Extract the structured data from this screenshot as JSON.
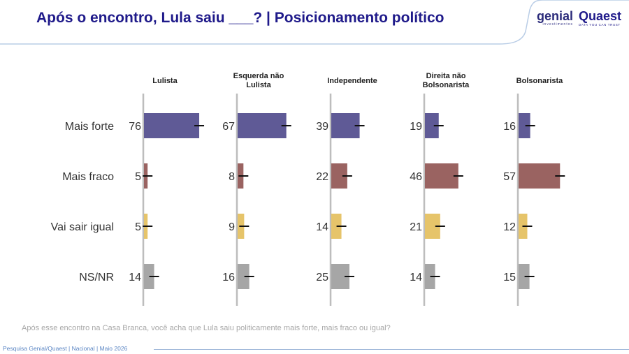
{
  "header": {
    "title": "Após o encontro, Lula saiu ___? | Posicionamento político",
    "logo_genial": "genial",
    "logo_genial_sub": "investimentos",
    "logo_quaest": "Quaest",
    "logo_quaest_sub": "DATA YOU CAN TRUST"
  },
  "chart_data": {
    "type": "bar",
    "orientation": "horizontal",
    "groups": [
      "Lulista",
      "Esquerda não Lulista",
      "Independente",
      "Direita não Bolsonarista",
      "Bolsonarista"
    ],
    "categories": [
      "Mais forte",
      "Mais fraco",
      "Vai sair igual",
      "NS/NR"
    ],
    "values": [
      [
        76,
        5,
        5,
        14
      ],
      [
        67,
        8,
        9,
        16
      ],
      [
        39,
        22,
        14,
        25
      ],
      [
        19,
        46,
        21,
        14
      ],
      [
        16,
        57,
        12,
        15
      ]
    ],
    "colors": [
      "#5f5a96",
      "#9a6361",
      "#e6c46a",
      "#a6a6a6"
    ],
    "error_bars": true
  },
  "question": "Após esse encontro na Casa Branca, você acha que Lula saiu politicamente mais forte, mais fraco ou igual?",
  "footer": "Pesquisa Genial/Quaest | Nacional | Maio 2026"
}
